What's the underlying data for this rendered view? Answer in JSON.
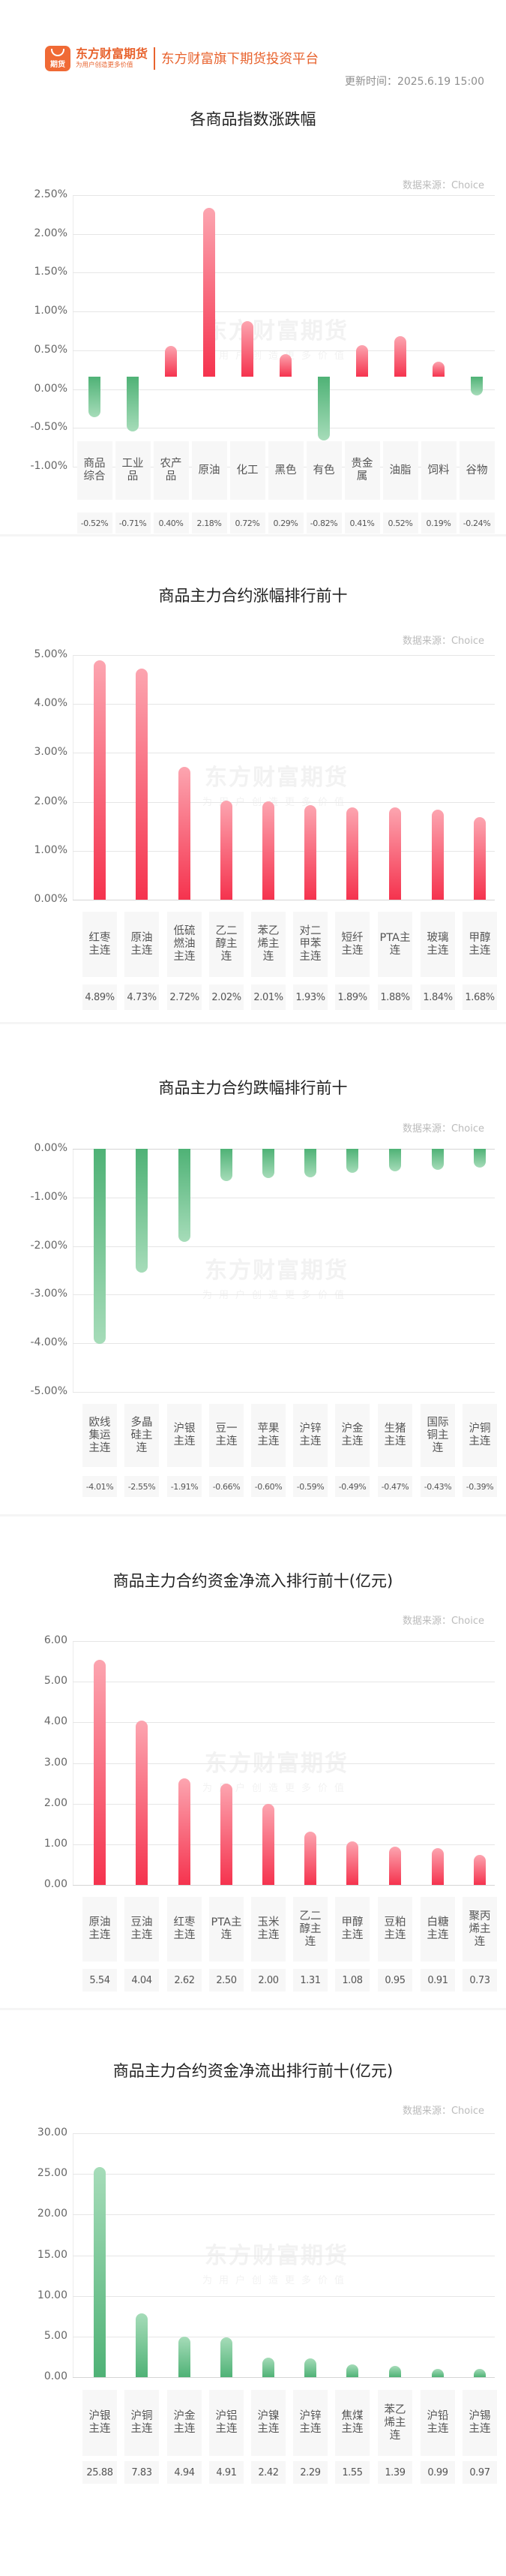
{
  "header": {
    "logo_icon_text": "期货",
    "brand_name": "东方财富期货",
    "brand_slogan": "为用户创造更多价值",
    "platform_text": "东方财富旗下期货投资平台",
    "update_time": "更新时间：2025.6.19 15:00"
  },
  "watermark": {
    "line1": "东方财富期货",
    "line2": "为用户创造更多价值"
  },
  "colors": {
    "brand": "#e8632e",
    "up": "#f5334e",
    "down": "#4fb276"
  },
  "chart_data": [
    {
      "type": "bar",
      "title": "各商品指数涨跌幅",
      "source": "数据来源：Choice",
      "categories": [
        "商品综合",
        "工业品",
        "农产品",
        "原油",
        "化工",
        "黑色",
        "有色",
        "贵金属",
        "油脂",
        "饲料",
        "谷物"
      ],
      "values": [
        -0.52,
        -0.71,
        0.4,
        2.18,
        0.72,
        0.29,
        -0.82,
        0.41,
        0.52,
        0.19,
        -0.24
      ],
      "value_labels": [
        "-0.52%",
        "-0.71%",
        "0.40%",
        "2.18%",
        "0.72%",
        "0.29%",
        "-0.82%",
        "0.41%",
        "0.52%",
        "0.19%",
        "-0.24%"
      ],
      "yticks": [
        "2.50%",
        "2.00%",
        "1.50%",
        "1.00%",
        "0.50%",
        "0.00%",
        "-0.50%",
        "-1.00%"
      ],
      "ylim": [
        -1.0,
        2.5
      ],
      "xlabel": "",
      "ylabel": "",
      "grid": true,
      "legend": "none"
    },
    {
      "type": "bar",
      "title": "商品主力合约涨幅排行前十",
      "source": "数据来源：Choice",
      "categories": [
        "红枣主连",
        "原油主连",
        "低硫燃油主连",
        "乙二醇主连",
        "苯乙烯主连",
        "对二甲苯主连",
        "短纤主连",
        "PTA主连",
        "玻璃主连",
        "甲醇主连"
      ],
      "values": [
        4.89,
        4.73,
        2.72,
        2.02,
        2.01,
        1.93,
        1.89,
        1.88,
        1.84,
        1.68
      ],
      "value_labels": [
        "4.89%",
        "4.73%",
        "2.72%",
        "2.02%",
        "2.01%",
        "1.93%",
        "1.89%",
        "1.88%",
        "1.84%",
        "1.68%"
      ],
      "yticks": [
        "5.00%",
        "4.00%",
        "3.00%",
        "2.00%",
        "1.00%",
        "0.00%"
      ],
      "ylim": [
        0,
        5.0
      ],
      "xlabel": "",
      "ylabel": "",
      "grid": true,
      "legend": "none"
    },
    {
      "type": "bar",
      "title": "商品主力合约跌幅排行前十",
      "source": "数据来源：Choice",
      "categories": [
        "欧线集运主连",
        "多晶硅主连",
        "沪银主连",
        "豆一主连",
        "苹果主连",
        "沪锌主连",
        "沪金主连",
        "生猪主连",
        "国际铜主连",
        "沪铜主连"
      ],
      "values": [
        -4.01,
        -2.55,
        -1.91,
        -0.66,
        -0.6,
        -0.59,
        -0.49,
        -0.47,
        -0.43,
        -0.39
      ],
      "value_labels": [
        "-4.01%",
        "-2.55%",
        "-1.91%",
        "-0.66%",
        "-0.60%",
        "-0.59%",
        "-0.49%",
        "-0.47%",
        "-0.43%",
        "-0.39%"
      ],
      "yticks": [
        "0.00%",
        "-1.00%",
        "-2.00%",
        "-3.00%",
        "-4.00%",
        "-5.00%"
      ],
      "ylim": [
        -5.0,
        0
      ],
      "xlabel": "",
      "ylabel": "",
      "grid": true,
      "legend": "none"
    },
    {
      "type": "bar",
      "title": "商品主力合约资金净流入排行前十(亿元)",
      "source": "数据来源：Choice",
      "categories": [
        "原油主连",
        "豆油主连",
        "红枣主连",
        "PTA主连",
        "玉米主连",
        "乙二醇主连",
        "甲醇主连",
        "豆粕主连",
        "白糖主连",
        "聚丙烯主连"
      ],
      "values": [
        5.54,
        4.04,
        2.62,
        2.5,
        2.0,
        1.31,
        1.08,
        0.95,
        0.91,
        0.73
      ],
      "value_labels": [
        "5.54",
        "4.04",
        "2.62",
        "2.50",
        "2.00",
        "1.31",
        "1.08",
        "0.95",
        "0.91",
        "0.73"
      ],
      "yticks": [
        "6.00",
        "5.00",
        "4.00",
        "3.00",
        "2.00",
        "1.00",
        "0.00"
      ],
      "ylim": [
        0,
        6.0
      ],
      "xlabel": "",
      "ylabel": "",
      "grid": true,
      "legend": "none"
    },
    {
      "type": "bar",
      "title": "商品主力合约资金净流出排行前十(亿元)",
      "source": "数据来源：Choice",
      "categories": [
        "沪银主连",
        "沪铜主连",
        "沪金主连",
        "沪铝主连",
        "沪镍主连",
        "沪锌主连",
        "焦煤主连",
        "苯乙烯主连",
        "沪铅主连",
        "沪锡主连"
      ],
      "values": [
        25.88,
        7.83,
        4.94,
        4.91,
        2.42,
        2.29,
        1.55,
        1.39,
        0.99,
        0.97
      ],
      "value_labels": [
        "25.88",
        "7.83",
        "4.94",
        "4.91",
        "2.42",
        "2.29",
        "1.55",
        "1.39",
        "0.99",
        "0.97"
      ],
      "yticks": [
        "30.00",
        "25.00",
        "20.00",
        "15.00",
        "10.00",
        "5.00",
        "0.00"
      ],
      "ylim": [
        0,
        30.0
      ],
      "xlabel": "",
      "ylabel": "",
      "grid": true,
      "legend": "none"
    }
  ]
}
